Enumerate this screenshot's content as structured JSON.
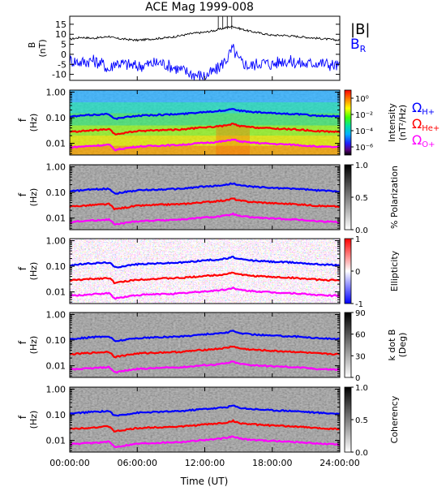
{
  "figure": {
    "title": "ACE Mag 1999-008",
    "xlabel": "Time (UT)",
    "time_ticks": [
      "00:00:00",
      "06:00:00",
      "12:00:00",
      "18:00:00",
      "24:00:00"
    ]
  },
  "colors": {
    "B_total": "#000000",
    "B_R": "#0000ff",
    "H_plus": "#0000ff",
    "He_plus": "#ff0000",
    "O_plus": "#ff00ff"
  },
  "labels": {
    "B_total_legend": "|B|",
    "B_R_legend_main": "B",
    "B_R_legend_sub": "R",
    "omega_glyph": "Ω",
    "H_sub": "H+",
    "He_sub": "He+",
    "O_sub": "O+"
  },
  "chart_data": [
    {
      "type": "line",
      "panel": "magnetic-field",
      "ylabel": "B",
      "yunit": "(nT)",
      "xlim": [
        0,
        24
      ],
      "ylim": [
        -13,
        19
      ],
      "yticks": [
        "15",
        "10",
        "5",
        "0",
        "-5",
        "-10"
      ],
      "yticks_values": [
        15,
        10,
        5,
        0,
        -5,
        -10
      ],
      "series": [
        {
          "name": "|B|",
          "x": [
            0,
            1,
            2,
            3,
            3.5,
            4,
            5,
            6,
            7,
            8,
            9,
            10,
            11,
            12,
            13,
            14,
            14.5,
            15,
            16,
            17,
            18,
            19,
            20,
            21,
            22,
            23,
            24
          ],
          "values": [
            7.5,
            8.5,
            8.0,
            8.5,
            9.0,
            8.0,
            7.5,
            7.0,
            7.5,
            8.0,
            8.5,
            9.5,
            10.5,
            11.0,
            12.0,
            13.5,
            14.0,
            13.0,
            11.5,
            10.5,
            9.5,
            9.5,
            9.0,
            8.5,
            8.0,
            7.5,
            7.0
          ]
        },
        {
          "name": "B_R",
          "x": [
            0,
            1,
            2,
            3,
            3.5,
            4,
            5,
            6,
            7,
            8,
            9,
            10,
            11,
            12,
            13,
            14,
            14.5,
            15,
            16,
            17,
            18,
            19,
            20,
            21,
            22,
            23,
            24
          ],
          "values": [
            -3,
            -4,
            -3,
            -5,
            -8,
            -4,
            -5,
            -6,
            -5,
            -4,
            -6,
            -8,
            -10,
            -11,
            -8,
            -2,
            3,
            -3,
            -6,
            -4,
            -5,
            -3,
            -4,
            -5,
            -4,
            -5,
            -6
          ]
        }
      ]
    },
    {
      "type": "heatmap",
      "panel": "intensity",
      "ylabel": "f",
      "yunit": "(Hz)",
      "yticks": [
        "1.00",
        "0.10",
        "0.01"
      ],
      "colorbar_label_1": "Intensity",
      "colorbar_label_2": "(nT²/Hz)",
      "colorbar_ticks": [
        "10⁰",
        "10⁻²",
        "10⁻⁴",
        "10⁻⁶"
      ],
      "colorbar_tick_values": [
        0,
        -2,
        -4,
        -6
      ],
      "color_range": [
        -7,
        1
      ],
      "colorscale": "rainbow"
    },
    {
      "type": "heatmap",
      "panel": "polarization",
      "ylabel": "f",
      "yunit": "(Hz)",
      "yticks": [
        "1.00",
        "0.10",
        "0.01"
      ],
      "colorbar_label_1": "% Polarization",
      "colorbar_label_2": "",
      "colorbar_ticks": [
        "1.0",
        "0.5",
        "0.0"
      ],
      "colorbar_tick_values": [
        1.0,
        0.5,
        0.0
      ],
      "color_range": [
        0,
        1
      ],
      "colorscale": "grayscale-inverted"
    },
    {
      "type": "heatmap",
      "panel": "ellipticity",
      "ylabel": "f",
      "yunit": "(Hz)",
      "yticks": [
        "1.00",
        "0.10",
        "0.01"
      ],
      "colorbar_label_1": "Ellipticity",
      "colorbar_label_2": "",
      "colorbar_ticks": [
        "1",
        "0",
        "-1"
      ],
      "colorbar_tick_values": [
        1,
        0,
        -1
      ],
      "color_range": [
        -1,
        1
      ],
      "colorscale": "blue-white-red"
    },
    {
      "type": "heatmap",
      "panel": "k-dot-b",
      "ylabel": "f",
      "yunit": "(Hz)",
      "yticks": [
        "1.00",
        "0.10",
        "0.01"
      ],
      "colorbar_label_1": "k dot B",
      "colorbar_label_2": "(Deg)",
      "colorbar_ticks": [
        "90",
        "60",
        "30",
        "0"
      ],
      "colorbar_tick_values": [
        90,
        60,
        30,
        0
      ],
      "color_range": [
        0,
        90
      ],
      "colorscale": "grayscale-inverted"
    },
    {
      "type": "heatmap",
      "panel": "coherency",
      "ylabel": "f",
      "yunit": "(Hz)",
      "yticks": [
        "1.00",
        "0.10",
        "0.01"
      ],
      "colorbar_label_1": "Coherency",
      "colorbar_label_2": "",
      "colorbar_ticks": [
        "1.0",
        "0.5",
        "0.0"
      ],
      "colorbar_tick_values": [
        1.0,
        0.5,
        0.0
      ],
      "color_range": [
        0,
        1
      ],
      "colorscale": "grayscale-inverted"
    }
  ],
  "gyrofrequency_lines": {
    "x": [
      0,
      2,
      3.5,
      4,
      6,
      8,
      10,
      12,
      13,
      14,
      14.5,
      15,
      16,
      18,
      20,
      22,
      24
    ],
    "H_plus_hz": [
      0.11,
      0.13,
      0.14,
      0.09,
      0.12,
      0.13,
      0.14,
      0.17,
      0.18,
      0.2,
      0.23,
      0.19,
      0.17,
      0.15,
      0.14,
      0.12,
      0.11
    ],
    "He_plus_hz": [
      0.028,
      0.032,
      0.035,
      0.022,
      0.03,
      0.033,
      0.035,
      0.042,
      0.045,
      0.05,
      0.058,
      0.048,
      0.043,
      0.038,
      0.035,
      0.03,
      0.028
    ],
    "O_plus_hz": [
      0.007,
      0.008,
      0.0088,
      0.0055,
      0.0075,
      0.0082,
      0.0088,
      0.0105,
      0.0112,
      0.0125,
      0.0145,
      0.012,
      0.0108,
      0.0095,
      0.0088,
      0.0075,
      0.007
    ]
  }
}
